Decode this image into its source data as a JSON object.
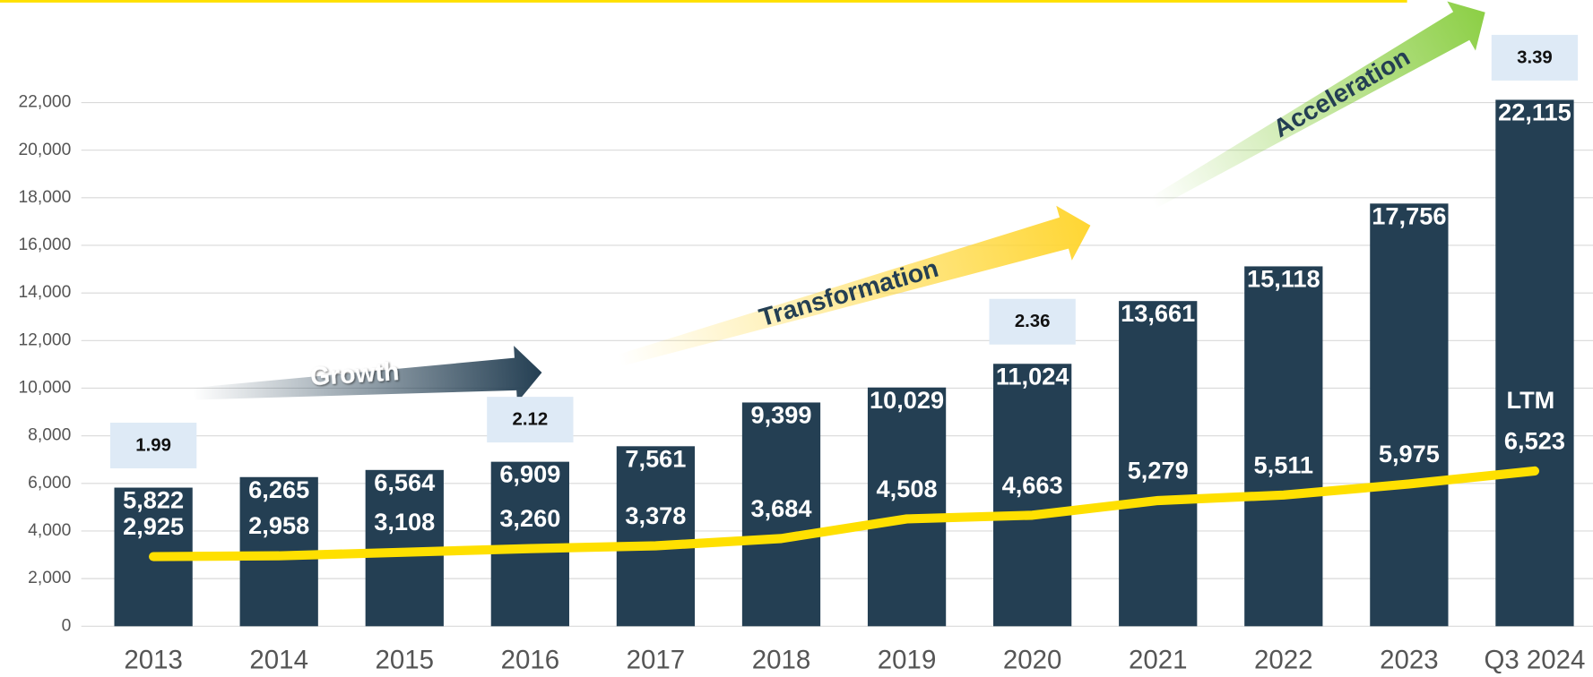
{
  "chart_data": {
    "type": "bar_line",
    "categories": [
      "2013",
      "2014",
      "2015",
      "2016",
      "2017",
      "2018",
      "2019",
      "2020",
      "2021",
      "2022",
      "2023",
      "Q3 2024"
    ],
    "series": [
      {
        "name": "Bars",
        "color": "#243f53",
        "values": [
          5822,
          6265,
          6564,
          6909,
          7561,
          9399,
          10029,
          11024,
          13661,
          15118,
          17756,
          22115
        ],
        "value_labels": [
          "5,822",
          "6,265",
          "6,564",
          "6,909",
          "7,561",
          "9,399",
          "10,029",
          "11,024",
          "13,661",
          "15,118",
          "17,756",
          "22,115"
        ]
      },
      {
        "name": "Line",
        "color": "#ffe000",
        "values": [
          2925,
          2958,
          3108,
          3260,
          3378,
          3684,
          4508,
          4663,
          5279,
          5511,
          5975,
          6523
        ],
        "value_labels": [
          "2,925",
          "2,958",
          "3,108",
          "3,260",
          "3,378",
          "3,684",
          "4,508",
          "4,663",
          "5,279",
          "5,511",
          "5,975",
          "6,523"
        ]
      }
    ],
    "ratios": [
      1.99,
      null,
      null,
      2.12,
      null,
      null,
      null,
      2.36,
      null,
      null,
      null,
      3.39
    ],
    "annotation": "LTM",
    "phase_labels": [
      "Growth",
      "Transformation",
      "Acceleration"
    ],
    "ylim": [
      0,
      22000
    ],
    "yticks": [
      0,
      {
        "value": 2000,
        "label": "2,000"
      },
      {
        "value": 4000,
        "label": "4,000"
      },
      {
        "value": 6000,
        "label": "6,000"
      },
      {
        "value": 8000,
        "label": "8,000"
      },
      {
        "value": 10000,
        "label": "10,000"
      },
      {
        "value": 12000,
        "label": "12,000"
      },
      {
        "value": 14000,
        "label": "14,000"
      },
      {
        "value": 16000,
        "label": "16,000"
      },
      {
        "value": 18000,
        "label": "18,000"
      },
      {
        "value": 20000,
        "label": "20,000"
      },
      {
        "value": 22000,
        "label": "22,000"
      }
    ],
    "grid": true
  }
}
